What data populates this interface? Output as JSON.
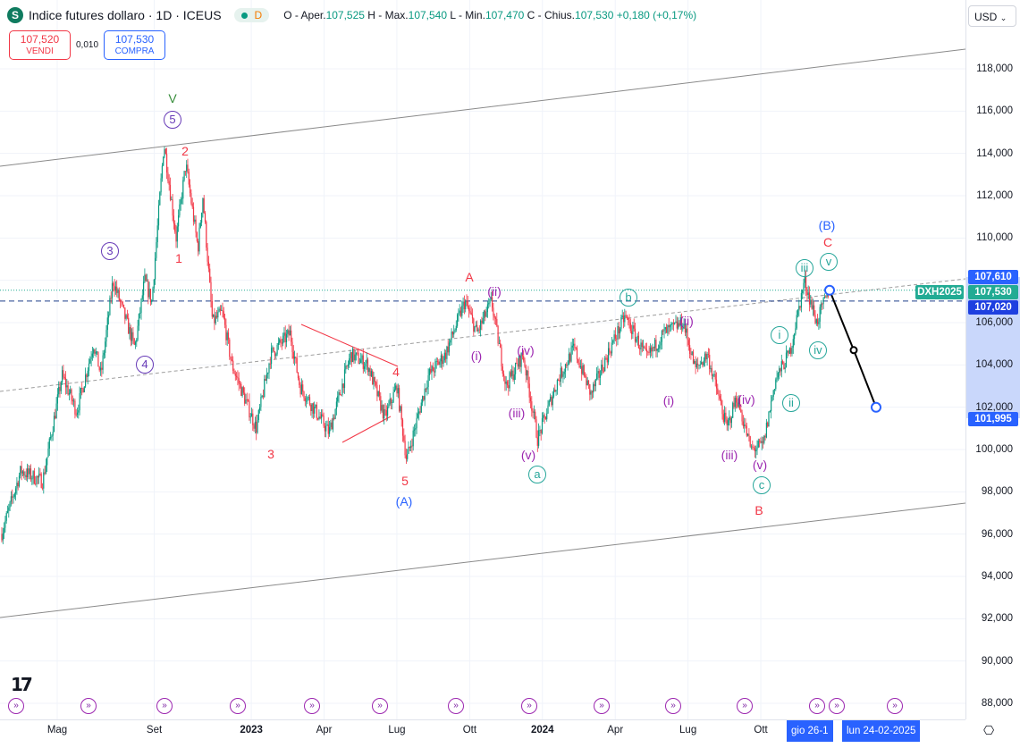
{
  "header": {
    "logo": "S",
    "title": "Indice futures dollaro · 1D · ICEUS",
    "status_badge": "D",
    "ohlc": {
      "o_label": "O - Aper.",
      "o": "107,525",
      "h_label": "H - Max.",
      "h": "107,540",
      "l_label": "L - Min.",
      "l": "107,470",
      "c_label": "C - Chius.",
      "c": "107,530",
      "change": "+0,180 (+0,17%)"
    }
  },
  "trade": {
    "sell_price": "107,520",
    "sell_label": "VENDI",
    "spread": "0,010",
    "buy_price": "107,530",
    "buy_label": "COMPRA"
  },
  "currency": "USD",
  "price_axis": {
    "ticks": [
      "118,000",
      "116,000",
      "114,000",
      "112,000",
      "110,000",
      "108,000",
      "106,000",
      "104,000",
      "102,000",
      "100,000",
      "98,000",
      "96,000",
      "94,000",
      "92,000",
      "90,000",
      "88,000"
    ],
    "tags": [
      {
        "text": "107,610",
        "color": "#2962ff"
      },
      {
        "text": "107,530",
        "color": "#22ab94"
      },
      {
        "text": "107,020",
        "color": "#1e3fe0"
      },
      {
        "text": "101,995",
        "color": "#2962ff"
      }
    ],
    "symbol_tag": "DXH2025"
  },
  "time_axis": {
    "ticks": [
      "Mag",
      "Set",
      "2023",
      "Apr",
      "Lug",
      "Ott",
      "2024",
      "Apr",
      "Lug",
      "Ott"
    ],
    "crosshair_left": "gio 26-1",
    "crosshair_right": "lun 24-02-2025"
  },
  "wave_labels": [
    "V",
    "5",
    "2",
    "3",
    "1",
    "4",
    "3",
    "4",
    "5",
    "(A)",
    "A",
    "(ii)",
    "(i)",
    "(iv)",
    "(iii)",
    "(v)",
    "a",
    "b",
    "(ii)",
    "(i)",
    "(iv)",
    "(iii)",
    "(v)",
    "c",
    "B",
    "i",
    "ii",
    "iii",
    "iv",
    "v",
    "C",
    "(B)"
  ],
  "event_icon": "»",
  "colors": {
    "up": "#089981",
    "down": "#f23645",
    "wave_red": "#f23645",
    "wave_purple": "#9c27b0",
    "wave_teal": "#26a69a",
    "wave_blue": "#2962ff",
    "wave_green": "#388e3c",
    "wave_circle": "#673ab7"
  },
  "chart_data": {
    "type": "candlestick",
    "symbol": "DXH2025",
    "ylim": [
      88000,
      118000
    ],
    "path_month_index_from_may_2022": [
      -2.3,
      -1.5,
      -0.6,
      0.2,
      0.8,
      1.5,
      1.8,
      2.3,
      3.2,
      3.6,
      3.9,
      4.4,
      4.9,
      5.3,
      5.8,
      6.0,
      6.4,
      6.8,
      7.2,
      8.2,
      8.8,
      9.6,
      10.0,
      11.2,
      12.1,
      12.8,
      13.5,
      14.0,
      14.4,
      15.3,
      16.0,
      16.8,
      17.3,
      17.9,
      18.5,
      19.2,
      19.8,
      20.6,
      21.3,
      22.0,
      22.8,
      23.4,
      24.3,
      25.0,
      25.8,
      26.3,
      26.8,
      27.6,
      28.0,
      28.6,
      29.1,
      29.6,
      30.2,
      30.8,
      31.3,
      31.8
    ],
    "path_price": [
      96000,
      99000,
      98500,
      103500,
      101800,
      105000,
      103500,
      108000,
      104800,
      108000,
      107000,
      114500,
      110000,
      113500,
      109500,
      112000,
      106000,
      106500,
      104000,
      101000,
      104500,
      105500,
      103000,
      100800,
      104500,
      104000,
      101500,
      103000,
      99500,
      103500,
      104500,
      107000,
      105500,
      107000,
      103000,
      104500,
      100500,
      103200,
      104800,
      102600,
      104800,
      106300,
      104300,
      105500,
      106000,
      103800,
      104500,
      101000,
      102500,
      100000,
      100200,
      103300,
      104600,
      108000,
      106000,
      107530
    ],
    "projection": [
      107530,
      104700,
      101995
    ]
  }
}
